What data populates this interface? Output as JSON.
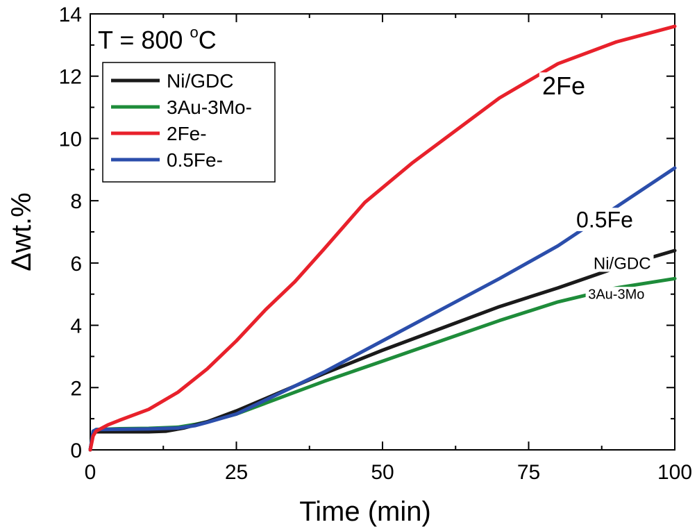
{
  "chart_data": {
    "type": "line",
    "xlabel": "Time (min)",
    "ylabel": "Δwt.%",
    "xlim": [
      0,
      100
    ],
    "ylim": [
      0,
      14
    ],
    "xticks": [
      0,
      25,
      50,
      75,
      100
    ],
    "yticks": [
      0,
      2,
      4,
      6,
      8,
      10,
      12,
      14
    ],
    "condition": {
      "text": "T = 800 ",
      "sup": "o",
      "unit": "C"
    },
    "legend_position": "top-left",
    "series": [
      {
        "name": "Ni/GDC",
        "color": "#1a1a1a",
        "x": [
          0,
          0.5,
          1,
          5,
          10,
          13,
          16,
          20,
          25,
          30,
          40,
          50,
          60,
          70,
          80,
          90,
          100
        ],
        "y": [
          0,
          0.55,
          0.58,
          0.58,
          0.58,
          0.6,
          0.7,
          0.9,
          1.25,
          1.65,
          2.45,
          3.2,
          3.9,
          4.6,
          5.2,
          5.85,
          6.4
        ]
      },
      {
        "name": "3Au-3Mo-",
        "color": "#1e8c3a",
        "x": [
          0,
          0.5,
          1,
          5,
          10,
          15,
          18,
          20,
          25,
          30,
          40,
          50,
          60,
          70,
          80,
          90,
          100
        ],
        "y": [
          0,
          0.58,
          0.65,
          0.68,
          0.69,
          0.73,
          0.82,
          0.9,
          1.15,
          1.5,
          2.2,
          2.85,
          3.5,
          4.15,
          4.75,
          5.2,
          5.5
        ]
      },
      {
        "name": "2Fe-",
        "color": "#e8212b",
        "x": [
          0,
          0.5,
          1,
          3,
          5,
          10,
          15,
          20,
          25,
          30,
          35,
          40,
          47,
          55,
          60,
          70,
          80,
          90,
          100
        ],
        "y": [
          0,
          0.45,
          0.6,
          0.8,
          0.95,
          1.3,
          1.85,
          2.6,
          3.5,
          4.5,
          5.4,
          6.45,
          7.95,
          9.2,
          9.9,
          11.3,
          12.4,
          13.1,
          13.6
        ]
      },
      {
        "name": "0.5Fe-",
        "color": "#2b4eab",
        "x": [
          0,
          0.5,
          1,
          5,
          10,
          15,
          18,
          20,
          25,
          30,
          40,
          50,
          60,
          70,
          80,
          90,
          100
        ],
        "y": [
          0,
          0.6,
          0.65,
          0.66,
          0.67,
          0.7,
          0.78,
          0.88,
          1.15,
          1.6,
          2.5,
          3.5,
          4.5,
          5.5,
          6.55,
          7.8,
          9.05
        ]
      }
    ],
    "annotations": [
      {
        "text": "2Fe",
        "x": 81,
        "y": 11.7,
        "size": 36
      },
      {
        "text": "0.5Fe",
        "x": 88,
        "y": 7.4,
        "size": 32
      },
      {
        "text": "Ni/GDC",
        "x": 91,
        "y": 6.0,
        "size": 24
      },
      {
        "text": "3Au-3Mo",
        "x": 90,
        "y": 5.0,
        "size": 20
      }
    ]
  }
}
